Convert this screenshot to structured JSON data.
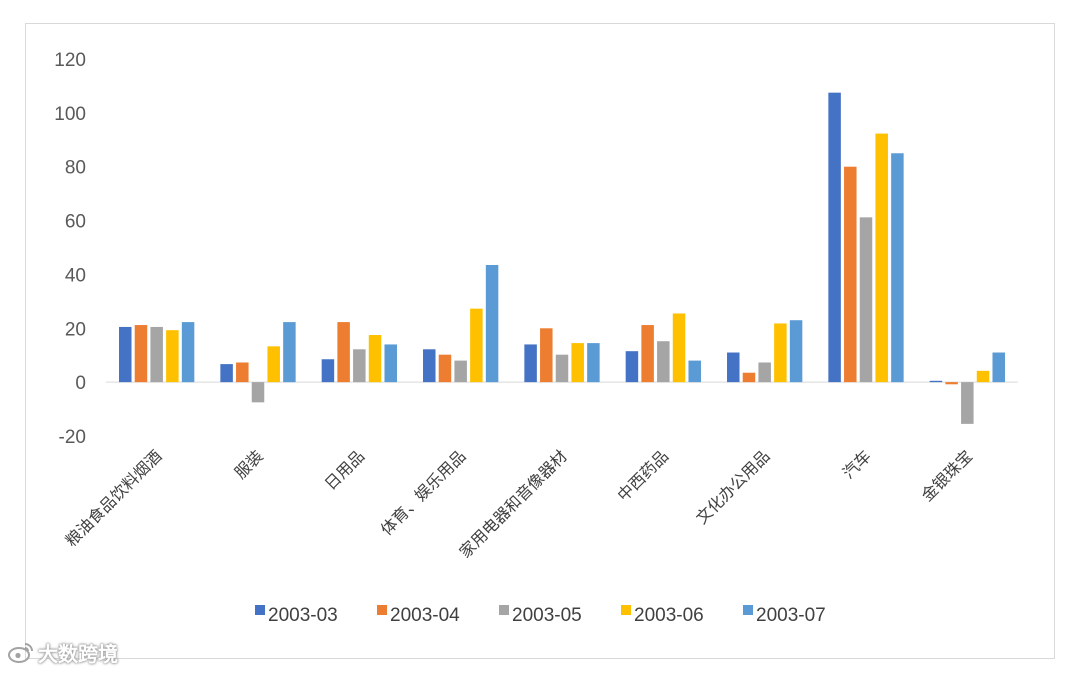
{
  "chart_data": {
    "type": "bar",
    "title": "",
    "xlabel": "",
    "ylabel": "",
    "ylim": [
      -20,
      120
    ],
    "yticks": [
      -20,
      0,
      20,
      40,
      60,
      80,
      100,
      120
    ],
    "grid": false,
    "legend_position": "bottom",
    "categories": [
      "粮油食品饮料烟酒",
      "服装",
      "日用品",
      "体育、娱乐用品",
      "家用电器和音像器材",
      "中西药品",
      "文化办公用品",
      "汽车",
      "金银珠宝"
    ],
    "series": [
      {
        "name": "2003-03",
        "color": "#4472c4",
        "values": [
          20.5,
          6.7,
          8.5,
          12.2,
          14.0,
          11.5,
          11.0,
          107.5,
          0.5
        ]
      },
      {
        "name": "2003-04",
        "color": "#ed7d31",
        "values": [
          21.2,
          7.3,
          22.3,
          10.2,
          20.0,
          21.2,
          3.5,
          80.0,
          -0.8
        ]
      },
      {
        "name": "2003-05",
        "color": "#a5a5a5",
        "values": [
          20.5,
          -7.5,
          12.2,
          8.0,
          10.2,
          15.2,
          7.3,
          61.2,
          -15.5
        ]
      },
      {
        "name": "2003-06",
        "color": "#ffc000",
        "values": [
          19.3,
          13.3,
          17.5,
          27.3,
          14.5,
          25.5,
          21.8,
          92.3,
          4.2
        ]
      },
      {
        "name": "2003-07",
        "color": "#5b9bd5",
        "values": [
          22.3,
          22.3,
          14.0,
          43.5,
          14.5,
          8.0,
          23.0,
          85.0,
          11.0
        ]
      }
    ]
  },
  "watermark": {
    "icon": "weibo-icon",
    "text": "大数跨境"
  }
}
